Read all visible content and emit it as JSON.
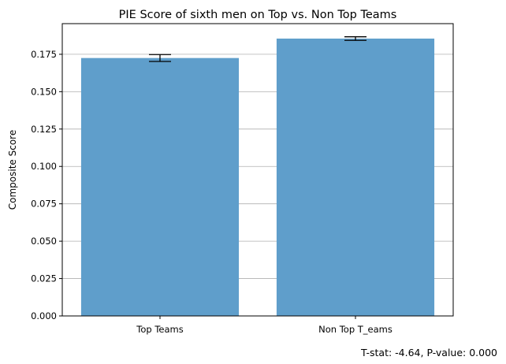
{
  "chart_data": {
    "type": "bar",
    "title": "PIE Score of sixth men on Top vs. Non Top Teams",
    "xlabel": "",
    "ylabel": "Composite Score",
    "categories": [
      "Top Teams",
      "Non Top T_eams"
    ],
    "values": [
      0.1725,
      0.1855
    ],
    "error": [
      0.0023,
      0.0012
    ],
    "ylim": [
      0,
      0.1955
    ],
    "yticks": [
      "0.000",
      "0.025",
      "0.050",
      "0.075",
      "0.100",
      "0.125",
      "0.150",
      "0.175"
    ],
    "ytick_values": [
      0,
      0.025,
      0.05,
      0.075,
      0.1,
      0.125,
      0.15,
      0.175
    ],
    "grid": "y",
    "colors": {
      "bar": "#5f9ecb",
      "grid": "#b0b0b0",
      "axis": "#000000"
    },
    "annotation": "T-stat: -4.64, P-value: 0.000"
  }
}
